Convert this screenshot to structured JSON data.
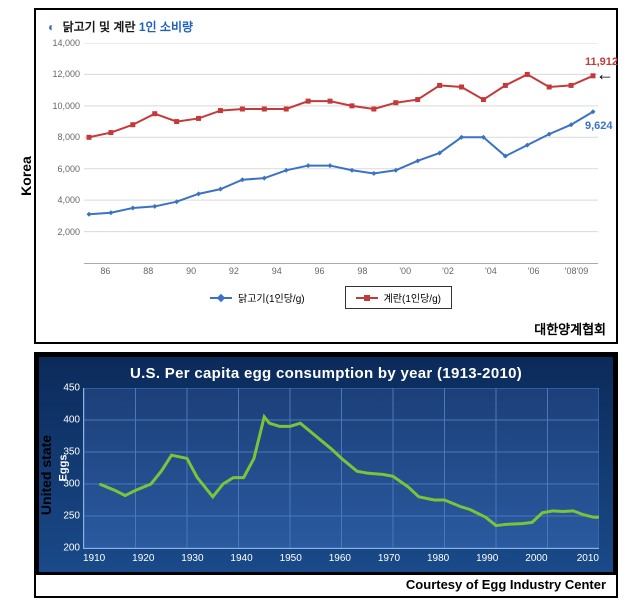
{
  "korea": {
    "vlabel": "Korea",
    "title_prefix": "닭고기 및 계란",
    "title_highlight": "1인 소비량",
    "source": "대한양계협회",
    "ylim": [
      0,
      14000
    ],
    "yticks": [
      2000,
      4000,
      6000,
      8000,
      10000,
      12000,
      14000
    ],
    "ytick_labels": [
      "2,000",
      "4,000",
      "6,000",
      "8,000",
      "10,000",
      "12,000",
      "14,000"
    ],
    "xticks": [
      "86",
      "88",
      "90",
      "92",
      "94",
      "96",
      "98",
      "'00",
      "'02",
      "'04",
      "'06",
      "'08'09"
    ],
    "series": [
      {
        "name": "닭고기(1인당/g)",
        "color": "#3a72c4",
        "marker": "diamond",
        "values": [
          3100,
          3200,
          3500,
          3600,
          3900,
          4400,
          4700,
          5300,
          5400,
          5900,
          6200,
          6200,
          5900,
          5700,
          5900,
          6500,
          7000,
          8000,
          8000,
          6800,
          7500,
          8200,
          8800,
          9624
        ],
        "callout": {
          "text": "9,624",
          "index": 23,
          "dy": 14
        }
      },
      {
        "name": "계란(1인당/g)",
        "color": "#c43a3a",
        "marker": "square",
        "values": [
          8000,
          8300,
          8800,
          9500,
          9000,
          9200,
          9700,
          9800,
          9800,
          9800,
          10300,
          10300,
          10000,
          9800,
          10200,
          10400,
          11300,
          11200,
          10400,
          11300,
          12000,
          11200,
          11300,
          11912
        ],
        "callout": {
          "text": "11,912",
          "index": 23,
          "dy": -14
        },
        "arrow": true,
        "legend_boxed": true
      }
    ],
    "line_width": 2,
    "marker_size": 5,
    "grid_color": "#d9d9d9",
    "background_color": "#ffffff"
  },
  "us": {
    "vlabel": "United state",
    "title": "U.S. Per capita egg consumption by year (1913-2010)",
    "source": "Courtesy of Egg Industry Center",
    "ylabel": "Eggs",
    "ylim": [
      200,
      450
    ],
    "yticks": [
      200,
      250,
      300,
      350,
      400,
      450
    ],
    "xlim": [
      1910,
      2010
    ],
    "xticks": [
      1910,
      1920,
      1930,
      1940,
      1950,
      1960,
      1970,
      1980,
      1990,
      2000,
      2010
    ],
    "series_color": "#7bc43a",
    "line_width": 3,
    "data": [
      [
        1913,
        300
      ],
      [
        1916,
        290
      ],
      [
        1918,
        282
      ],
      [
        1920,
        290
      ],
      [
        1923,
        300
      ],
      [
        1925,
        320
      ],
      [
        1927,
        345
      ],
      [
        1930,
        340
      ],
      [
        1932,
        310
      ],
      [
        1935,
        280
      ],
      [
        1937,
        300
      ],
      [
        1939,
        310
      ],
      [
        1941,
        310
      ],
      [
        1943,
        340
      ],
      [
        1945,
        405
      ],
      [
        1946,
        395
      ],
      [
        1948,
        390
      ],
      [
        1950,
        390
      ],
      [
        1952,
        395
      ],
      [
        1955,
        375
      ],
      [
        1958,
        355
      ],
      [
        1960,
        340
      ],
      [
        1963,
        320
      ],
      [
        1965,
        317
      ],
      [
        1968,
        315
      ],
      [
        1970,
        312
      ],
      [
        1973,
        295
      ],
      [
        1975,
        280
      ],
      [
        1978,
        275
      ],
      [
        1980,
        275
      ],
      [
        1983,
        265
      ],
      [
        1985,
        260
      ],
      [
        1988,
        248
      ],
      [
        1990,
        235
      ],
      [
        1992,
        237
      ],
      [
        1995,
        238
      ],
      [
        1997,
        240
      ],
      [
        1999,
        255
      ],
      [
        2001,
        258
      ],
      [
        2003,
        257
      ],
      [
        2005,
        258
      ],
      [
        2007,
        252
      ],
      [
        2009,
        248
      ],
      [
        2010,
        248
      ]
    ],
    "bg_gradient": [
      "#0b2a5a",
      "#1a4a8a"
    ],
    "plot_gradient": [
      "#1c3f78",
      "#2a5aa0"
    ],
    "grid_color": "#4a78b8"
  }
}
